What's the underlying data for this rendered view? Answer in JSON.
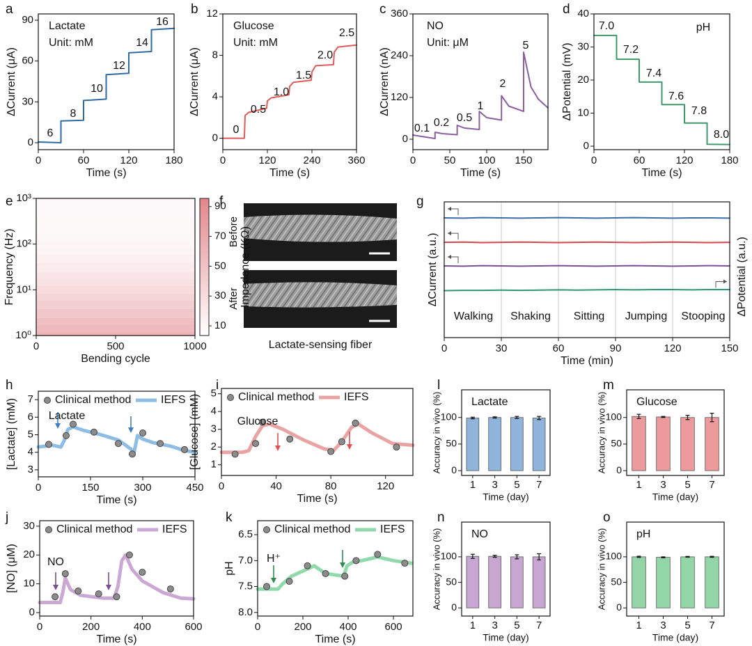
{
  "chart_data": [
    {
      "panel": "a",
      "type": "line",
      "annotations": [
        "Lactate",
        "Unit: mM",
        "6",
        "8",
        "10",
        "12",
        "14",
        "16"
      ],
      "xlabel": "Time (s)",
      "ylabel": "ΔCurrent (μA)",
      "xlim": [
        0,
        180
      ],
      "xticks": [
        0,
        60,
        120,
        180
      ],
      "ylim": [
        -5.1,
        94.6
      ],
      "yticks": [
        0,
        30,
        60,
        90
      ],
      "series": [
        {
          "color": "#2f6aa3",
          "x": [
            0,
            30,
            30,
            60,
            60,
            90,
            90,
            120,
            120,
            150,
            150,
            180
          ],
          "values": [
            0.5,
            0,
            16,
            16.5,
            31,
            32,
            50,
            51,
            66,
            67,
            83,
            84
          ]
        }
      ]
    },
    {
      "panel": "b",
      "type": "line",
      "annotations": [
        "Glucose",
        "Unit: mM",
        "0",
        "0.5",
        "1.0",
        "1.5",
        "2.0",
        "2.5"
      ],
      "xlabel": "Time (s)",
      "ylabel": "ΔCurrent (μA)",
      "xlim": [
        0,
        360
      ],
      "xticks": [
        0,
        120,
        240,
        360
      ],
      "ylim": [
        -1.1,
        12
      ],
      "yticks": [
        0,
        4,
        8,
        12
      ],
      "series": [
        {
          "color": "#e05a5a",
          "x": [
            0,
            58,
            60,
            70,
            118,
            120,
            130,
            178,
            180,
            190,
            238,
            240,
            250,
            298,
            300,
            310,
            360
          ],
          "values": [
            0,
            0,
            2.2,
            2.5,
            2.9,
            3.6,
            3.9,
            4.2,
            5.0,
            5.4,
            5.6,
            6.4,
            7.0,
            7.1,
            8.3,
            8.8,
            9.0
          ]
        }
      ]
    },
    {
      "panel": "c",
      "type": "line",
      "annotations": [
        "NO",
        "Unit: μM",
        "0.1",
        "0.2",
        "0.5",
        "1",
        "2",
        "5"
      ],
      "xlabel": "Time (s)",
      "ylabel": "ΔCurrent (nA)",
      "xlim": [
        0,
        183
      ],
      "xticks": [
        0,
        50,
        100,
        150
      ],
      "ylim": [
        -30,
        360
      ],
      "yticks": [
        0,
        120,
        240,
        360
      ],
      "series": [
        {
          "color": "#8a5fa0",
          "x": [
            0,
            30,
            30,
            40,
            60,
            60,
            70,
            90,
            90,
            100,
            120,
            120,
            130,
            150,
            150,
            160,
            170,
            183
          ],
          "values": [
            12,
            2,
            20,
            16,
            13,
            40,
            32,
            28,
            80,
            62,
            55,
            125,
            95,
            80,
            250,
            150,
            115,
            90
          ]
        }
      ]
    },
    {
      "panel": "d",
      "type": "line",
      "annotations": [
        "7.0",
        "7.2",
        "7.4",
        "7.6",
        "7.8",
        "8.0",
        "pH"
      ],
      "xlabel": "Time (s)",
      "ylabel": "ΔPotential (mV)",
      "xlim": [
        0,
        180
      ],
      "xticks": [
        0,
        60,
        120,
        180
      ],
      "ylim": [
        -1.05,
        40
      ],
      "yticks": [
        0,
        10,
        20,
        30,
        40
      ],
      "series": [
        {
          "color": "#3f9a6a",
          "x": [
            0,
            30,
            30,
            60,
            60,
            90,
            90,
            120,
            120,
            150,
            150,
            180
          ],
          "values": [
            33.5,
            33.5,
            26.3,
            26.3,
            19.4,
            19.4,
            12.6,
            12.6,
            7,
            7,
            0.6,
            0.5
          ]
        }
      ]
    },
    {
      "panel": "e",
      "type": "heatmap",
      "xlabel": "Bending cycle",
      "ylabel": "Frequency (Hz)",
      "colorbar_label": "Impedance (KΩ)",
      "log_y": true,
      "xlim": [
        0,
        1000
      ],
      "xticks": [
        0,
        500,
        1000
      ],
      "ylim": [
        1,
        1000
      ],
      "yticks": [
        {
          "value": 1,
          "label": "10⁰"
        },
        {
          "value": 10,
          "label": "10¹"
        },
        {
          "value": 100,
          "label": "10²"
        },
        {
          "value": 1000,
          "label": "10³"
        }
      ],
      "clim": [
        3.5,
        95.5
      ],
      "cticks": [
        10,
        30,
        50,
        70,
        90
      ],
      "colormap": [
        "#ffffff",
        "#e3868c"
      ],
      "frequency": [
        1,
        1.5,
        2,
        3,
        5,
        7,
        10,
        15,
        20,
        30,
        50,
        70,
        100,
        150,
        200,
        300,
        500,
        700,
        1000
      ],
      "impedance": [
        60,
        56,
        52,
        46,
        40,
        35,
        31,
        26,
        23,
        19,
        15,
        12,
        10,
        9,
        8,
        8,
        7,
        7,
        7
      ]
    },
    {
      "panel": "f",
      "type": "image",
      "labels": [
        "Before",
        "After"
      ],
      "caption": "Lactate-sensing fiber"
    },
    {
      "panel": "g",
      "type": "line",
      "grid": true,
      "annotations": [
        "Walking",
        "Shaking",
        "Sitting",
        "Jumping",
        "Stooping"
      ],
      "xlabel": "Time (min)",
      "ylabel": "ΔCurrent (a.u.)",
      "y2label": "ΔPotential (a.u.)",
      "xlim": [
        0,
        150
      ],
      "xticks": [
        0,
        30,
        60,
        90,
        120,
        150
      ],
      "ylim": [
        0,
        5
      ],
      "y2lim": [
        0,
        5
      ],
      "series": [
        {
          "color": "#3a6ea5",
          "x": [
            0,
            10,
            20,
            30,
            40,
            50,
            60,
            70,
            80,
            90,
            100,
            110,
            120,
            130,
            140,
            150
          ],
          "values": [
            4.41,
            4.4,
            4.42,
            4.41,
            4.4,
            4.41,
            4.42,
            4.41,
            4.4,
            4.41,
            4.42,
            4.41,
            4.4,
            4.41,
            4.41,
            4.4
          ]
        },
        {
          "color": "#d9454e",
          "x": [
            0,
            10,
            20,
            30,
            40,
            50,
            60,
            70,
            80,
            90,
            100,
            110,
            120,
            130,
            140,
            150
          ],
          "values": [
            3.51,
            3.52,
            3.5,
            3.51,
            3.52,
            3.51,
            3.5,
            3.51,
            3.52,
            3.51,
            3.5,
            3.51,
            3.52,
            3.51,
            3.5,
            3.51
          ]
        },
        {
          "color": "#7b4f96",
          "x": [
            0,
            10,
            20,
            30,
            40,
            50,
            60,
            70,
            80,
            90,
            100,
            110,
            120,
            130,
            140,
            150
          ],
          "values": [
            2.64,
            2.63,
            2.65,
            2.64,
            2.63,
            2.64,
            2.65,
            2.64,
            2.63,
            2.64,
            2.65,
            2.64,
            2.63,
            2.64,
            2.65,
            2.64
          ]
        },
        {
          "color": "#2e9474",
          "axis": "y2",
          "x": [
            0,
            10,
            20,
            30,
            40,
            50,
            60,
            70,
            80,
            90,
            100,
            110,
            120,
            130,
            140,
            150
          ],
          "values": [
            1.73,
            1.74,
            1.74,
            1.75,
            1.74,
            1.75,
            1.76,
            1.75,
            1.76,
            1.77,
            1.76,
            1.77,
            1.77,
            1.76,
            1.77,
            1.77
          ]
        }
      ]
    },
    {
      "panel": "h",
      "type": "line",
      "annotations": [
        "Lactate"
      ],
      "annotation_color": "#3f7fbf",
      "arrow_color": "#3f7fbf",
      "xlabel": "Time (s)",
      "ylabel": "[Lactate] (mM)",
      "xlim": [
        0,
        450
      ],
      "xticks": [
        0,
        150,
        300,
        450
      ],
      "ylim": [
        2.6,
        7.48
      ],
      "yticks": [
        3,
        4,
        5,
        6,
        7
      ],
      "series": [
        {
          "name": "Clinical method",
          "type": "scatter",
          "color": "#8c8c8c",
          "x": [
            30,
            80,
            100,
            160,
            230,
            270,
            300,
            350,
            420
          ],
          "values": [
            4.45,
            4.95,
            5.6,
            5.15,
            4.5,
            3.9,
            5.1,
            4.5,
            4.15
          ]
        },
        {
          "name": "IEFS",
          "color": "#8ebde3",
          "x": [
            0,
            40,
            65,
            75,
            85,
            100,
            130,
            180,
            230,
            265,
            275,
            285,
            300,
            330,
            380,
            420,
            450
          ],
          "values": [
            4.3,
            4.4,
            4.3,
            4.7,
            5.3,
            5.45,
            5.25,
            5.0,
            4.7,
            4.2,
            4.0,
            4.95,
            4.75,
            4.55,
            4.35,
            4.1,
            4.0
          ]
        }
      ]
    },
    {
      "panel": "i",
      "type": "line",
      "annotations": [
        "Glucose"
      ],
      "annotation_color": "#e06060",
      "arrow_color": "#e05050",
      "xlabel": "Time (s)",
      "ylabel": "[Glucose] (mM)",
      "xlim": [
        0,
        140
      ],
      "xticks": [
        0,
        40,
        80,
        120
      ],
      "ylim": [
        0.4,
        5.3
      ],
      "yticks": [
        1,
        2,
        3,
        4,
        5
      ],
      "series": [
        {
          "name": "Clinical method",
          "type": "scatter",
          "color": "#8c8c8c",
          "x": [
            10,
            25,
            30,
            50,
            80,
            88,
            98,
            128
          ],
          "values": [
            1.6,
            2.2,
            3.4,
            2.45,
            1.75,
            2.3,
            3.35,
            2.0
          ]
        },
        {
          "name": "IEFS",
          "color": "#e9a3a3",
          "x": [
            0,
            15,
            20,
            25,
            30,
            35,
            45,
            60,
            75,
            82,
            88,
            95,
            100,
            110,
            125,
            140
          ],
          "values": [
            1.7,
            1.7,
            1.8,
            2.6,
            3.2,
            3.3,
            3.0,
            2.4,
            1.9,
            1.8,
            2.3,
            3.1,
            3.3,
            2.8,
            2.2,
            2.1
          ]
        }
      ]
    },
    {
      "panel": "l",
      "type": "bar",
      "title": "Lactate",
      "xlabel": "Time (day)",
      "ylabel": "Accuracy in vivo (%)",
      "categories": [
        "1",
        "3",
        "5",
        "7"
      ],
      "values": [
        99,
        100,
        100,
        99
      ],
      "errors": [
        1.5,
        1.2,
        2,
        3
      ],
      "color": "#8fb5dc",
      "ylim": [
        -9,
        152
      ],
      "yticks": [
        0,
        50,
        100
      ]
    },
    {
      "panel": "m",
      "type": "bar",
      "title": "Glucose",
      "xlabel": "Time (day)",
      "ylabel": "Accuracy in vivo (%)",
      "categories": [
        "1",
        "3",
        "5",
        "7"
      ],
      "values": [
        102,
        101,
        100,
        100
      ],
      "errors": [
        4,
        1,
        4,
        8
      ],
      "color": "#ec9a9c",
      "ylim": [
        -9,
        152
      ],
      "yticks": [
        0,
        50,
        100
      ]
    },
    {
      "panel": "j",
      "type": "line",
      "annotations": [
        "NO"
      ],
      "annotation_color": "#8a5fa0",
      "arrow_color": "#7a4f8f",
      "xlabel": "Time (s)",
      "ylabel": "[NO] (μM)",
      "xlim": [
        0,
        600
      ],
      "xticks": [
        0,
        200,
        400,
        600
      ],
      "ylim": [
        -1.2,
        31.9
      ],
      "yticks": [
        0,
        10,
        20,
        30
      ],
      "series": [
        {
          "name": "Clinical method",
          "type": "scatter",
          "color": "#8c8c8c",
          "x": [
            60,
            100,
            150,
            230,
            300,
            350,
            400,
            510
          ],
          "values": [
            5.5,
            13.5,
            7.5,
            6.5,
            5.5,
            20,
            14,
            8.2
          ]
        },
        {
          "name": "IEFS",
          "color": "#cba8d3",
          "x": [
            0,
            80,
            90,
            100,
            120,
            160,
            250,
            290,
            305,
            320,
            335,
            360,
            400,
            480,
            550,
            600
          ],
          "values": [
            3.5,
            3.5,
            7,
            12,
            8,
            6,
            5,
            5,
            9,
            18,
            20,
            15,
            11,
            7,
            5,
            4.8
          ]
        }
      ]
    },
    {
      "panel": "k",
      "type": "line",
      "annotations": [
        "H⁺"
      ],
      "annotation_color": "#2f8a55",
      "arrow_color": "#2f8a55",
      "xlabel": "Time (s)",
      "ylabel": "pH",
      "xlim": [
        0,
        686
      ],
      "xticks": [
        0,
        200,
        400,
        600
      ],
      "ylim": [
        8.07,
        6.23
      ],
      "yticks": [
        6.5,
        {
          "value": 7,
          "label": "7.0"
        },
        7.5,
        {
          "value": 8,
          "label": "8.0"
        }
      ],
      "series": [
        {
          "name": "Clinical method",
          "type": "scatter",
          "color": "#8c8c8c",
          "x": [
            40,
            140,
            220,
            300,
            385,
            435,
            530,
            650
          ],
          "values": [
            7.5,
            7.4,
            7.1,
            7.25,
            7.3,
            7.0,
            6.88,
            7.05
          ]
        },
        {
          "name": "IEFS",
          "color": "#8fd9ab",
          "x": [
            0,
            90,
            110,
            150,
            250,
            300,
            380,
            395,
            420,
            460,
            530,
            600,
            680
          ],
          "values": [
            7.55,
            7.55,
            7.45,
            7.3,
            7.1,
            7.25,
            7.3,
            7.1,
            7.03,
            7.0,
            6.93,
            7.0,
            7.05
          ]
        }
      ]
    },
    {
      "panel": "n",
      "type": "bar",
      "title": "NO",
      "xlabel": "Time (day)",
      "ylabel": "Accuracy in vivo (%)",
      "categories": [
        "1",
        "3",
        "5",
        "7"
      ],
      "values": [
        101,
        101,
        100,
        100
      ],
      "errors": [
        4,
        2,
        4,
        6
      ],
      "color": "#c7a7d2",
      "ylim": [
        -16,
        168
      ],
      "yticks": [
        0,
        50,
        100
      ]
    },
    {
      "panel": "o",
      "type": "bar",
      "title": "pH",
      "xlabel": "Time (day)",
      "ylabel": "Accuracy in vivo (%)",
      "categories": [
        "1",
        "3",
        "5",
        "7"
      ],
      "values": [
        100,
        99,
        100,
        100
      ],
      "errors": [
        1.2,
        1,
        0.8,
        1
      ],
      "color": "#92d6a8",
      "ylim": [
        -16,
        168
      ],
      "yticks": [
        0,
        50,
        100
      ]
    }
  ]
}
